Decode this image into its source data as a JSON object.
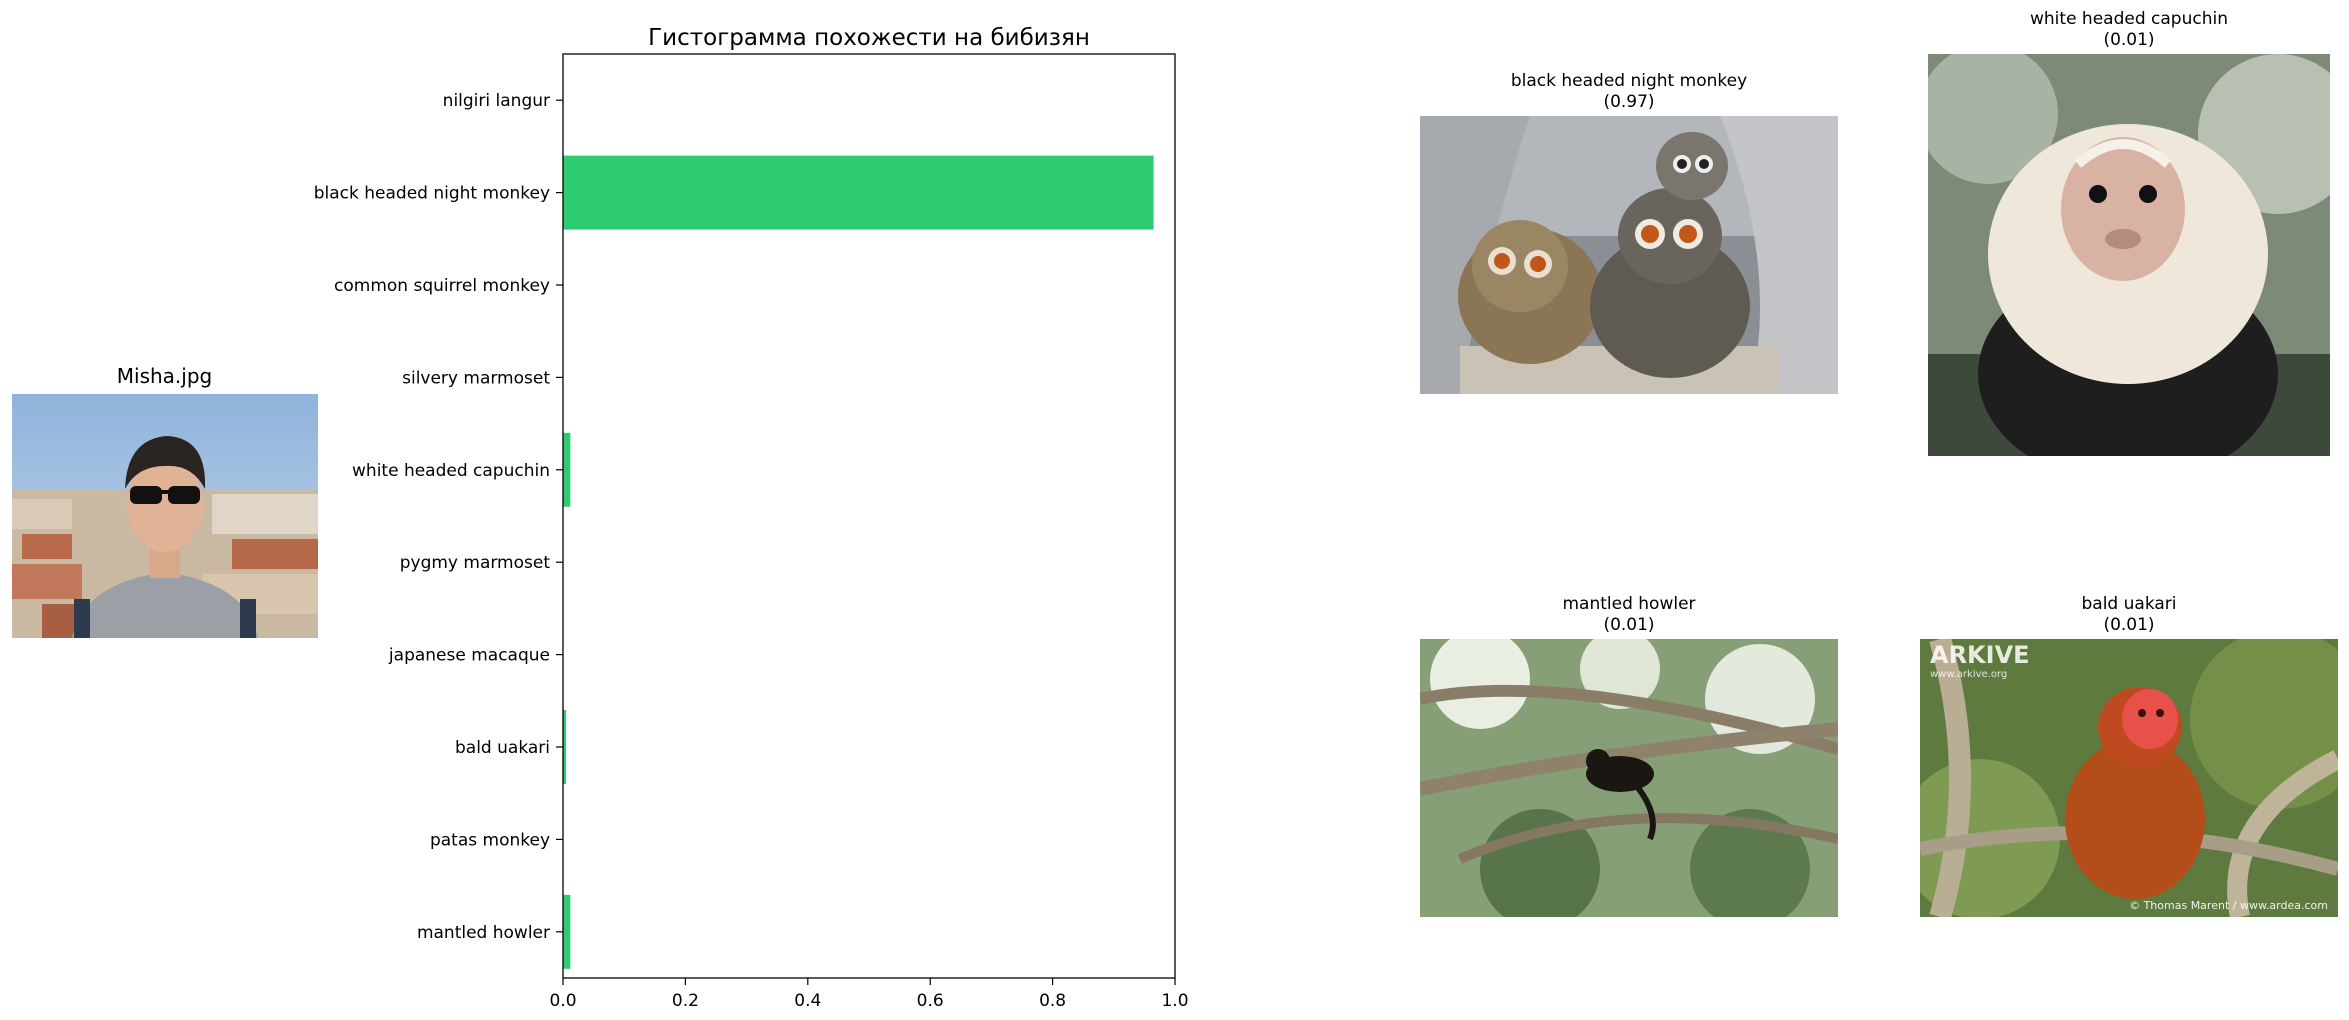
{
  "left_image": {
    "title": "Misha.jpg"
  },
  "chart_data": {
    "type": "bar",
    "orientation": "horizontal",
    "title": "Гистограмма похожести на бибизян",
    "xlabel": "",
    "ylabel": "",
    "xlim": [
      0,
      1
    ],
    "x_ticks": [
      "0.0",
      "0.2",
      "0.4",
      "0.6",
      "0.8",
      "1.0"
    ],
    "categories": [
      "nilgiri langur",
      "black headed night monkey",
      "common squirrel monkey",
      "silvery marmoset",
      "white headed capuchin",
      "pygmy marmoset",
      "japanese macaque",
      "bald uakari",
      "patas monkey",
      "mantled howler"
    ],
    "values": [
      0.0,
      0.965,
      0.0,
      0.0,
      0.012,
      0.0,
      0.0,
      0.005,
      0.0,
      0.012
    ],
    "bar_color": "#2ecc71",
    "grid": false
  },
  "top_matches": [
    {
      "name": "black headed night monkey",
      "score": "(0.97)"
    },
    {
      "name": "white headed capuchin",
      "score": "(0.01)"
    },
    {
      "name": "mantled howler",
      "score": "(0.01)"
    },
    {
      "name": "bald uakari",
      "score": "(0.01)"
    }
  ],
  "watermark": {
    "logo": "ARKIVE",
    "url": "www.arkive.org",
    "credit": "© Thomas Marent / www.ardea.com"
  }
}
